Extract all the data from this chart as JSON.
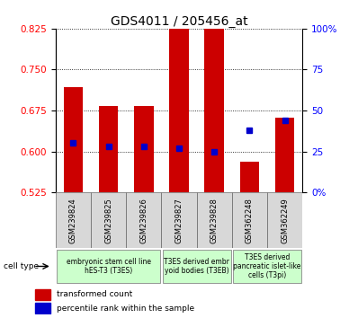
{
  "title": "GDS4011 / 205456_at",
  "samples": [
    "GSM239824",
    "GSM239825",
    "GSM239826",
    "GSM239827",
    "GSM239828",
    "GSM362248",
    "GSM362249"
  ],
  "transformed_count": [
    0.718,
    0.683,
    0.683,
    0.858,
    0.825,
    0.582,
    0.662
  ],
  "percentile_rank": [
    30,
    28,
    28,
    27,
    25,
    38,
    44
  ],
  "ylim_left": [
    0.525,
    0.825
  ],
  "ylim_right": [
    0,
    100
  ],
  "yticks_left": [
    0.525,
    0.6,
    0.675,
    0.75,
    0.825
  ],
  "yticks_right": [
    0,
    25,
    50,
    75,
    100
  ],
  "ytick_labels_right": [
    "0%",
    "25",
    "50",
    "75",
    "100%"
  ],
  "bar_color": "#cc0000",
  "dot_color": "#0000cc",
  "bar_width": 0.55,
  "bar_bottom": 0.525,
  "groups": [
    {
      "label": "embryonic stem cell line\nhES-T3 (T3ES)",
      "start": 0,
      "end": 3,
      "color": "#ccffcc"
    },
    {
      "label": "T3ES derived embr\nyoid bodies (T3EB)",
      "start": 3,
      "end": 5,
      "color": "#ccffcc"
    },
    {
      "label": "T3ES derived\npancreatic islet-like\ncells (T3pi)",
      "start": 5,
      "end": 7,
      "color": "#ccffcc"
    }
  ],
  "legend_items": [
    {
      "label": "transformed count",
      "color": "#cc0000"
    },
    {
      "label": "percentile rank within the sample",
      "color": "#0000cc"
    }
  ],
  "cell_type_label": "cell type",
  "background_color": "#ffffff",
  "title_fontsize": 10,
  "tick_fontsize": 7.5,
  "sample_fontsize": 6.0,
  "group_fontsize": 5.5,
  "legend_fontsize": 6.5
}
